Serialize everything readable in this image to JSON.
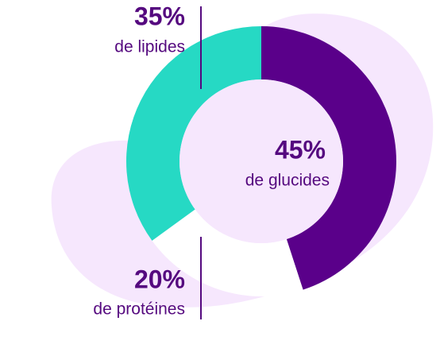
{
  "chart_data": {
    "type": "donut",
    "categories": [
      "de glucides",
      "de protéines",
      "de lipides"
    ],
    "values": [
      45,
      20,
      35
    ],
    "value_labels": [
      "45%",
      "20%",
      "35%"
    ],
    "colors": [
      "#5a008a",
      "#ffffff",
      "#26d9c4"
    ]
  }
}
